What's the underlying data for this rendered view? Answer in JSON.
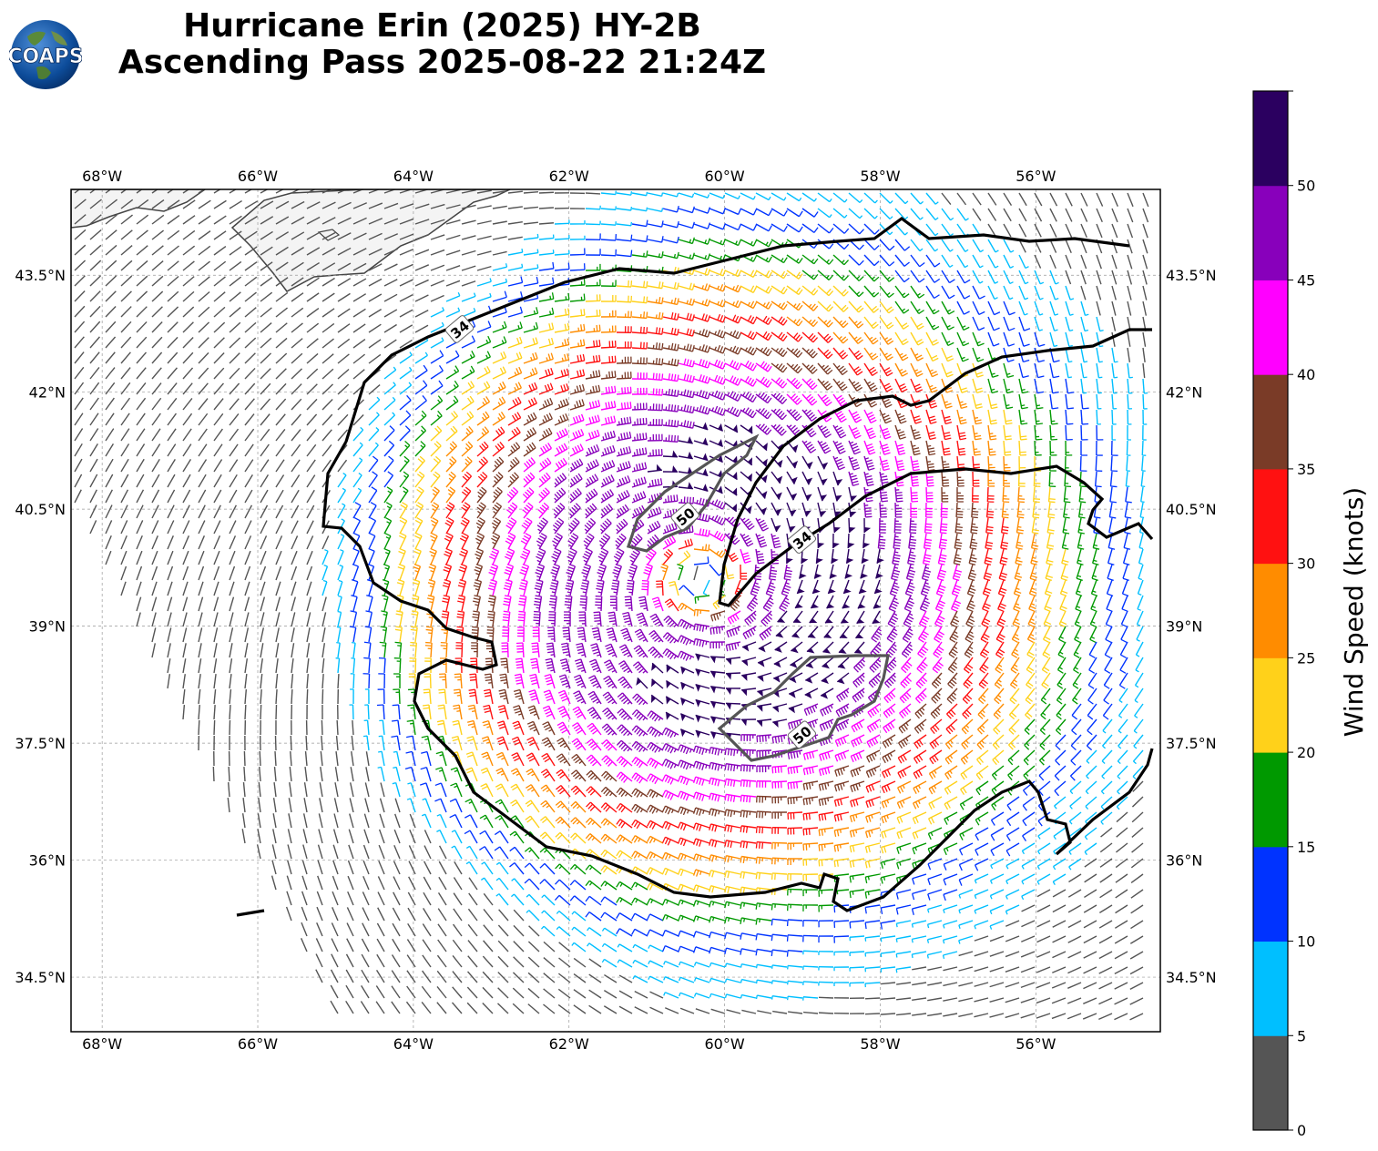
{
  "header": {
    "title_line1": "Hurricane Erin (2025) HY-2B",
    "title_line2": "Ascending Pass 2025-08-22 21:24Z",
    "logo_text": "COAPS"
  },
  "map": {
    "lon_range": [
      -68.4,
      -54.4
    ],
    "lat_range": [
      33.8,
      44.6
    ],
    "lon_ticks": [
      {
        "value": -68,
        "label": "68°W"
      },
      {
        "value": -66,
        "label": "66°W"
      },
      {
        "value": -64,
        "label": "64°W"
      },
      {
        "value": -62,
        "label": "62°W"
      },
      {
        "value": -60,
        "label": "60°W"
      },
      {
        "value": -58,
        "label": "58°W"
      },
      {
        "value": -56,
        "label": "56°W"
      }
    ],
    "lat_ticks": [
      {
        "value": 43.5,
        "label": "43.5°N"
      },
      {
        "value": 42,
        "label": "42°N"
      },
      {
        "value": 40.5,
        "label": "40.5°N"
      },
      {
        "value": 39,
        "label": "39°N"
      },
      {
        "value": 37.5,
        "label": "37.5°N"
      },
      {
        "value": 36,
        "label": "36°N"
      },
      {
        "value": 34.5,
        "label": "34.5°N"
      }
    ],
    "gridlines": true,
    "storm_center": {
      "lon": -60.3,
      "lat": 39.6
    },
    "contours": [
      {
        "level": "34",
        "label": "34",
        "label_position": {
          "lon": -63.4,
          "lat": 42.8
        }
      },
      {
        "level": "34",
        "label": "34",
        "label_position": {
          "lon": -59.0,
          "lat": 40.1
        }
      },
      {
        "level": "50",
        "label": "50",
        "label_position": {
          "lon": -60.5,
          "lat": 40.4
        }
      },
      {
        "level": "50",
        "label": "50",
        "label_position": {
          "lon": -59.0,
          "lat": 37.6
        }
      }
    ]
  },
  "colorbar": {
    "title": "Wind Speed (knots)",
    "bins": [
      {
        "from": 0,
        "to": 5,
        "color": "#555555"
      },
      {
        "from": 5,
        "to": 10,
        "color": "#00bfff"
      },
      {
        "from": 10,
        "to": 15,
        "color": "#0033ff"
      },
      {
        "from": 15,
        "to": 20,
        "color": "#009900"
      },
      {
        "from": 20,
        "to": 25,
        "color": "#ffd11a"
      },
      {
        "from": 25,
        "to": 30,
        "color": "#ff8c00"
      },
      {
        "from": 30,
        "to": 35,
        "color": "#ff1111"
      },
      {
        "from": 35,
        "to": 40,
        "color": "#7a3b27"
      },
      {
        "from": 40,
        "to": 45,
        "color": "#ff00ff"
      },
      {
        "from": 45,
        "to": 50,
        "color": "#8800bb"
      },
      {
        "from": 50,
        "to": 55,
        "color": "#2b0060"
      }
    ],
    "tick_labels": [
      "0",
      "5",
      "10",
      "15",
      "20",
      "25",
      "30",
      "35",
      "40",
      "45",
      "50"
    ]
  }
}
